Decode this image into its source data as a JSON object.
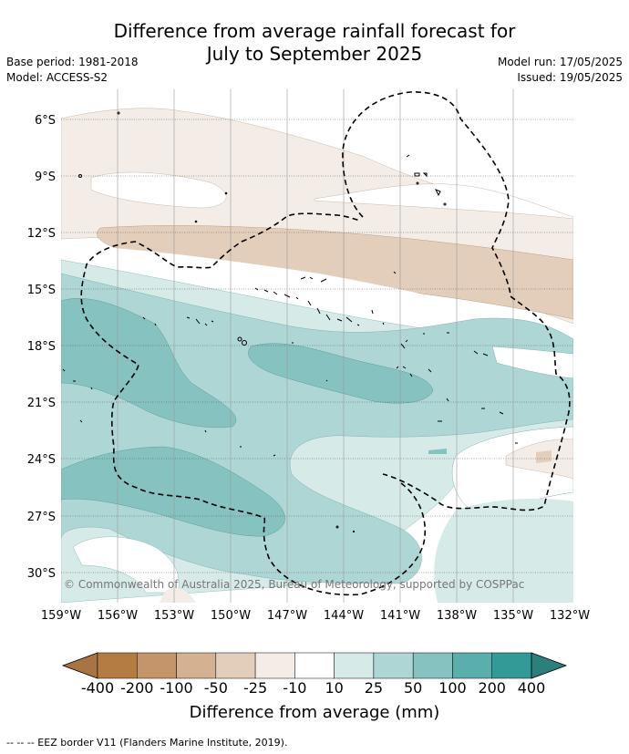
{
  "title_line1": "Difference from average rainfall forecast for",
  "title_line2": "July to September 2025",
  "base_period": "Base period: 1981-2018",
  "model": "Model: ACCESS-S2",
  "model_run": "Model run: 17/05/2025",
  "issued": "Issued: 19/05/2025",
  "lat_labels": [
    "6°S",
    "9°S",
    "12°S",
    "15°S",
    "18°S",
    "21°S",
    "24°S",
    "27°S",
    "30°S"
  ],
  "lon_labels": [
    "159°W",
    "156°W",
    "153°W",
    "150°W",
    "147°W",
    "144°W",
    "141°W",
    "138°W",
    "135°W",
    "132°W"
  ],
  "copyright": "© Commonwealth of Australia 2025, Bureau of Meteorology, supported by COSPPac",
  "colorbar": {
    "title": "Difference from average (mm)",
    "labels": [
      "-400",
      "-200",
      "-100",
      "-50",
      "-25",
      "-10",
      "10",
      "25",
      "50",
      "100",
      "200",
      "400"
    ],
    "colors": [
      "#a87443",
      "#b47c43",
      "#c4956a",
      "#d4b190",
      "#e3cebc",
      "#f4ede7",
      "#ffffff",
      "#d6eae8",
      "#aed6d5",
      "#85c2c0",
      "#5aaeac",
      "#339a97",
      "#2c7f7c"
    ]
  },
  "legend_footer": "--  --  -- EEZ border V11 (Flanders Marine Institute, 2019)."
}
